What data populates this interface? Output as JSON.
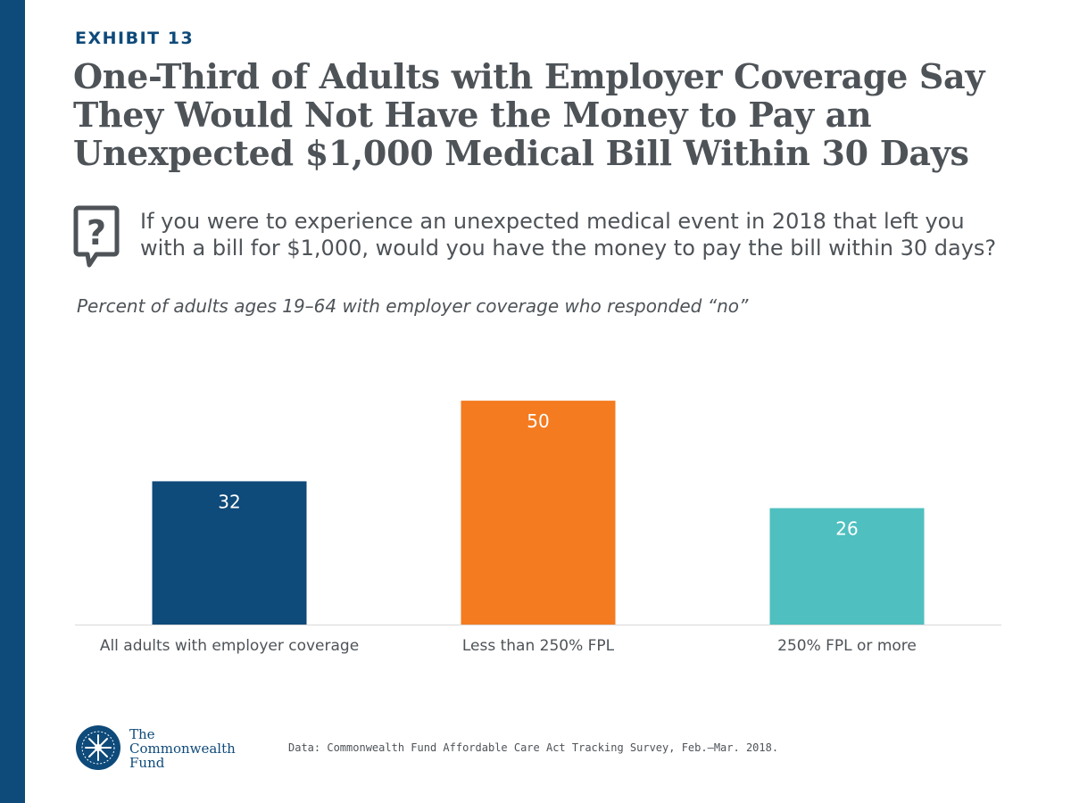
{
  "exhibit_label": "EXHIBIT 13",
  "title_lines": [
    "One-Third of Adults with Employer Coverage Say",
    "They Would Not Have the Money to Pay an",
    "Unexpected $1,000 Medical Bill Within 30 Days"
  ],
  "question_lines": [
    "If you were to experience an unexpected medical event in 2018 that left you",
    "with a bill for $1,000, would you have the money to pay the bill within 30 days?"
  ],
  "subtitle": "Percent of adults ages 19–64 with employer coverage who responded “no”",
  "chart_data": {
    "type": "bar",
    "categories": [
      "All adults with employer coverage",
      "Less than 250% FPL",
      "250% FPL or more"
    ],
    "values": [
      32,
      50,
      26
    ],
    "colors": [
      "#0e4a7a",
      "#f47b20",
      "#4fbfbf"
    ],
    "ylim": [
      0,
      55
    ],
    "grid": false,
    "legend": "none"
  },
  "logo": {
    "line1": "The",
    "line2": "Commonwealth",
    "line3": "Fund"
  },
  "source": "Data: Commonwealth Fund Affordable Care Act Tracking Survey, Feb.–Mar. 2018."
}
